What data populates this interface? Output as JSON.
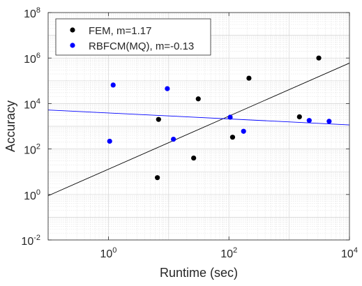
{
  "chart_data": {
    "type": "scatter",
    "xscale": "log",
    "yscale": "log",
    "xlim": [
      0.1,
      10000
    ],
    "ylim": [
      0.01,
      100000000
    ],
    "xlabel": "Runtime (sec)",
    "ylabel": "Accuracy",
    "grid": true,
    "legend_position": "top-left",
    "x_ticks": [
      {
        "value": 1,
        "base": "10",
        "exp": "0"
      },
      {
        "value": 100,
        "base": "10",
        "exp": "2"
      },
      {
        "value": 10000,
        "base": "10",
        "exp": "4"
      }
    ],
    "y_ticks": [
      {
        "value": 0.01,
        "base": "10",
        "exp": "-2"
      },
      {
        "value": 1,
        "base": "10",
        "exp": "0"
      },
      {
        "value": 100,
        "base": "10",
        "exp": "2"
      },
      {
        "value": 10000,
        "base": "10",
        "exp": "4"
      },
      {
        "value": 1000000,
        "base": "10",
        "exp": "6"
      },
      {
        "value": 100000000,
        "base": "10",
        "exp": "8"
      }
    ],
    "series": [
      {
        "name": "FEM, m=1.17",
        "color": "#000000",
        "points": [
          {
            "x": 6.5,
            "y": 5.5
          },
          {
            "x": 6.8,
            "y": 2000
          },
          {
            "x": 26,
            "y": 40
          },
          {
            "x": 31,
            "y": 16000
          },
          {
            "x": 115,
            "y": 330
          },
          {
            "x": 215,
            "y": 130000
          },
          {
            "x": 1480,
            "y": 2600
          },
          {
            "x": 3100,
            "y": 1000000
          }
        ],
        "fit": {
          "x": [
            0.1,
            10000
          ],
          "y": [
            0.88,
            600000
          ]
        }
      },
      {
        "name": "RBFCM(MQ), m=-0.13",
        "color": "#0000ff",
        "points": [
          {
            "x": 1.05,
            "y": 220
          },
          {
            "x": 1.2,
            "y": 65000
          },
          {
            "x": 9.5,
            "y": 45000
          },
          {
            "x": 12,
            "y": 270
          },
          {
            "x": 105,
            "y": 2500
          },
          {
            "x": 175,
            "y": 600
          },
          {
            "x": 2150,
            "y": 1800
          },
          {
            "x": 4600,
            "y": 1650
          }
        ],
        "fit": {
          "x": [
            0.1,
            10000
          ],
          "y": [
            5200,
            1150
          ]
        }
      }
    ]
  }
}
